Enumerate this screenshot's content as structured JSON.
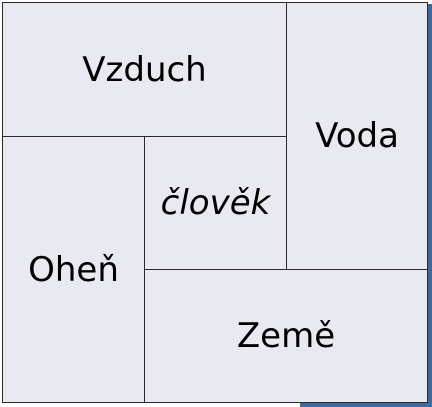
{
  "diagram": {
    "elements": {
      "air": "Vzduch",
      "water": "Voda",
      "human": "člověk",
      "fire": "Oheň",
      "earth": "Země"
    }
  }
}
